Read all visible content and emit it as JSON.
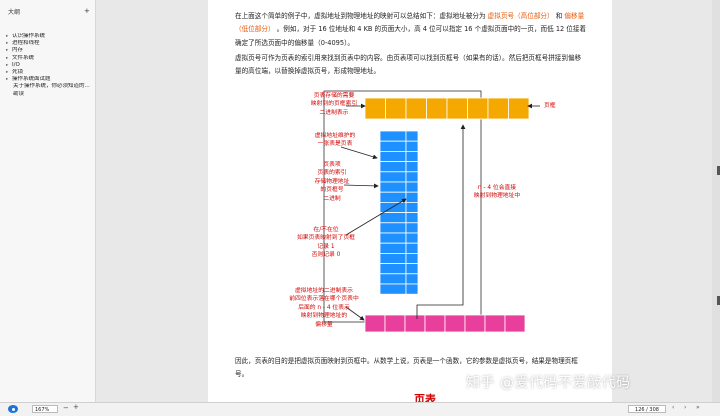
{
  "sidebar": {
    "title": "大纲",
    "add_icon": "+",
    "items": [
      {
        "label": "认识操作系统",
        "level": 0
      },
      {
        "label": "进程和线程",
        "level": 0
      },
      {
        "label": "内存",
        "level": 0
      },
      {
        "label": "文件系统",
        "level": 0
      },
      {
        "label": "I/O",
        "level": 0
      },
      {
        "label": "死锁",
        "level": 0
      },
      {
        "label": "操作系统面试题",
        "level": 0
      },
      {
        "label": "关于操作系统，你必须知道的...",
        "level": 1
      },
      {
        "label": "勘误",
        "level": 1
      }
    ]
  },
  "document": {
    "p1_a": "在上面这个简单的例子中，虚拟地址到物理地址的映射可以总结如下：虚拟地址被分为 ",
    "p1_hl1": "虚拟页号（高位部分）",
    "p1_b": " 和 ",
    "p1_hl2": "偏移量（低位部分）",
    "p1_c": " 。例如，对于 16 位地址和 4 KB 的页面大小，高 4 位可以指定 16 个虚拟页面中的一页，而低 12 位接着确定了所选页面中的偏移量（0-4095）。",
    "p2": "虚拟页号可作为页表的索引用来找到页表中的内容。由页表项可以找到页框号（如果有的话）。然后把页框号拼接到偏移量的高位端，以替换掉虚拟页号，形成物理地址。",
    "p3": "因此，页表的目的是把虚拟页面映射到页框中。从数学上说，页表是一个函数，它的参数是虚拟页号，结果是物理页框号。",
    "next_section": "页表"
  },
  "figure": {
    "label_top_left": [
      "页表存储的需要",
      "映射到的页框索引",
      "二进制表示"
    ],
    "label_page_frame": "页框",
    "label_maintain": [
      "虚拟地址维护的",
      "一张表是页表"
    ],
    "label_entry": [
      "页表项",
      "页表的索引",
      "存储物理地址",
      "的页框号",
      "二进制"
    ],
    "label_present": [
      "在/不在位",
      "如果页表映射到了页框",
      "记录 1",
      "否则记录 0"
    ],
    "label_right": [
      "n - 4 位会直接",
      "映射到物理地址中"
    ],
    "label_bottom": [
      "虚拟地址的二进制表示",
      "前四位表示落在哪个页表中",
      "后面的 n - 4 位表示",
      "映射到物理地址的",
      "偏移量"
    ],
    "colors": {
      "frame": "#f5a800",
      "table": "#1e90ff",
      "virtual": "#e83e9c",
      "annotation": "#d00000"
    }
  },
  "statusbar": {
    "zoom": "167%",
    "zoom_out": "−",
    "zoom_in": "+",
    "page": "126 / 308",
    "prev": "‹",
    "next": "›",
    "last": "»"
  },
  "watermark": "知乎 @爱代码不爱敲代码"
}
